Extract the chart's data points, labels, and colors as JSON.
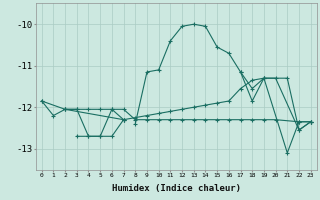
{
  "xlabel": "Humidex (Indice chaleur)",
  "background_color": "#cce8e0",
  "grid_color": "#aaccc4",
  "line_color": "#1a6e62",
  "xlim": [
    -0.5,
    23.5
  ],
  "ylim": [
    -13.5,
    -9.5
  ],
  "yticks": [
    -13,
    -12,
    -11,
    -10
  ],
  "xticks": [
    0,
    1,
    2,
    3,
    4,
    5,
    6,
    7,
    8,
    9,
    10,
    11,
    12,
    13,
    14,
    15,
    16,
    17,
    18,
    19,
    20,
    21,
    22,
    23
  ],
  "series": [
    {
      "points": [
        [
          0,
          -11.85
        ],
        [
          1,
          -12.2
        ],
        [
          2,
          -12.05
        ],
        [
          3,
          -12.05
        ],
        [
          4,
          -12.05
        ],
        [
          5,
          -12.05
        ],
        [
          6,
          -12.05
        ],
        [
          7,
          -12.05
        ],
        [
          8,
          -12.3
        ],
        [
          9,
          -12.3
        ],
        [
          10,
          -12.3
        ],
        [
          11,
          -12.3
        ],
        [
          12,
          -12.3
        ],
        [
          13,
          -12.3
        ],
        [
          14,
          -12.3
        ],
        [
          15,
          -12.3
        ],
        [
          16,
          -12.3
        ],
        [
          17,
          -12.3
        ],
        [
          18,
          -12.3
        ],
        [
          19,
          -12.3
        ],
        [
          20,
          -12.3
        ],
        [
          22,
          -12.35
        ],
        [
          23,
          -12.35
        ]
      ],
      "connected": true
    },
    {
      "points": [
        [
          0,
          -11.85
        ],
        [
          2,
          -12.05
        ],
        [
          7,
          -12.3
        ],
        [
          8,
          -12.25
        ],
        [
          9,
          -12.2
        ],
        [
          10,
          -12.15
        ],
        [
          11,
          -12.1
        ],
        [
          12,
          -12.05
        ],
        [
          13,
          -12.0
        ],
        [
          14,
          -11.95
        ],
        [
          15,
          -11.9
        ],
        [
          16,
          -11.85
        ],
        [
          17,
          -11.55
        ],
        [
          18,
          -11.35
        ],
        [
          19,
          -11.3
        ],
        [
          21,
          -11.3
        ],
        [
          22,
          -12.55
        ],
        [
          23,
          -12.35
        ]
      ],
      "connected": true
    },
    {
      "points": [
        [
          3,
          -12.7
        ],
        [
          4,
          -12.7
        ],
        [
          5,
          -12.7
        ],
        [
          6,
          -12.7
        ],
        [
          7,
          -12.3
        ]
      ],
      "connected": true
    },
    {
      "points": [
        [
          2,
          -12.05
        ],
        [
          3,
          -12.05
        ],
        [
          4,
          -12.7
        ],
        [
          5,
          -12.7
        ],
        [
          6,
          -12.05
        ],
        [
          7,
          -12.3
        ]
      ],
      "connected": true
    },
    {
      "points": [
        [
          8,
          -12.4
        ],
        [
          9,
          -11.15
        ],
        [
          10,
          -11.1
        ],
        [
          11,
          -10.4
        ],
        [
          12,
          -10.05
        ],
        [
          13,
          -10.0
        ],
        [
          14,
          -10.05
        ],
        [
          15,
          -10.55
        ],
        [
          16,
          -10.7
        ],
        [
          17,
          -11.15
        ],
        [
          18,
          -11.55
        ],
        [
          19,
          -11.3
        ],
        [
          20,
          -11.3
        ],
        [
          22,
          -12.55
        ],
        [
          23,
          -12.35
        ]
      ],
      "connected": true
    },
    {
      "points": [
        [
          17,
          -11.15
        ],
        [
          18,
          -11.85
        ],
        [
          19,
          -11.3
        ],
        [
          21,
          -13.1
        ],
        [
          22,
          -12.35
        ],
        [
          23,
          -12.35
        ]
      ],
      "connected": true
    }
  ]
}
